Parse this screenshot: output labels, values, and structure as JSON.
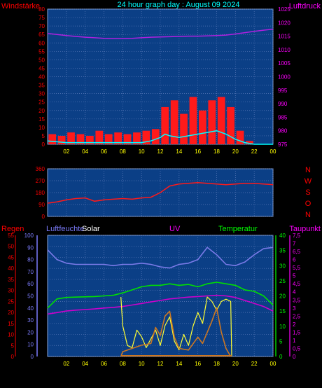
{
  "header": {
    "title": "24 hour graph day : August 09 2024",
    "left_label": "Windstärke",
    "right_label": "Luftdruck"
  },
  "colors": {
    "background": "#000000",
    "plot_bg": "#0b3f86",
    "grid": "#5878b8",
    "title": "#00ffff",
    "red_text": "#ff0000",
    "magenta_text": "#ff00ff",
    "blue_text": "#7d7dff",
    "yellow_text": "#ffff00",
    "green_text": "#00ff00",
    "white_text": "#ffffff",
    "x_tick_text": "#ffff00",
    "wind_red": "#ff1a1a",
    "gust_cyan": "#00ffff",
    "gust_white": "#ffffff",
    "pressure_magenta": "#b020e0",
    "direction_red": "#ff1a1a",
    "humidity_blue": "#7a7ae8",
    "temperature_green": "#00e000",
    "dewpoint_magenta": "#cc00cc",
    "solar_yellow": "#ffff33",
    "uv_orange": "#cc7722",
    "rain_white": "#ffffff"
  },
  "chart_data": [
    {
      "type": "line",
      "title": "24 hour graph day : August 09 2024",
      "x_ticks": [
        "02",
        "04",
        "06",
        "08",
        "10",
        "12",
        "14",
        "16",
        "18",
        "20",
        "22",
        "00"
      ],
      "x_range_hours": [
        0,
        24
      ],
      "left_axis": {
        "label": "Windstärke",
        "ticks": [
          "0",
          "5",
          "10",
          "15",
          "20",
          "25",
          "30",
          "35",
          "40",
          "45",
          "50",
          "55",
          "60",
          "65",
          "70",
          "75",
          "80"
        ],
        "ylim": [
          0,
          80
        ]
      },
      "right_axis": {
        "label": "Luftdruck",
        "ticks": [
          "975",
          "980",
          "985",
          "990",
          "995",
          "1000",
          "1005",
          "1010",
          "1015",
          "1020",
          "1025"
        ],
        "ylim": [
          975,
          1025
        ]
      },
      "series": [
        {
          "name": "",
          "axis": "right",
          "style": "line",
          "color_key": "pressure_magenta",
          "x": [
            0,
            1,
            2,
            3,
            4,
            5,
            6,
            7,
            8,
            9,
            10,
            11,
            12,
            13,
            14,
            15,
            16,
            17,
            18,
            19,
            20,
            21,
            22,
            23,
            24
          ],
          "y": [
            1016,
            1015.6,
            1015.2,
            1014.9,
            1014.6,
            1014.4,
            1014.2,
            1014.1,
            1014.1,
            1014.2,
            1014.4,
            1014.6,
            1014.7,
            1014.8,
            1014.9,
            1015,
            1015,
            1015.1,
            1015.2,
            1015.4,
            1015.8,
            1016.3,
            1016.8,
            1017.2,
            1017.6
          ]
        },
        {
          "name": "",
          "axis": "left",
          "style": "bars",
          "color_key": "wind_red",
          "x": [
            0.5,
            1.5,
            2.5,
            3.5,
            4.5,
            5.5,
            6.5,
            7.5,
            8.5,
            9.5,
            10.5,
            11.5,
            12.5,
            13.5,
            14.5,
            15.5,
            16.5,
            17.5,
            18.5,
            19.5,
            20.5,
            21.5,
            22.5,
            23.5
          ],
          "y": [
            6,
            5,
            7,
            6,
            5,
            8,
            6,
            7,
            6,
            7,
            8,
            9,
            22,
            26,
            18,
            28,
            20,
            26,
            28,
            22,
            8,
            2,
            0,
            0
          ]
        },
        {
          "name": "",
          "axis": "left",
          "style": "line",
          "color_key": "gust_cyan",
          "x": [
            0,
            2,
            4,
            6,
            8,
            10,
            11,
            12,
            12.5,
            13,
            14,
            15,
            16,
            17,
            18,
            19,
            20,
            21,
            22,
            24
          ],
          "y": [
            2,
            1,
            1,
            1,
            1,
            1,
            2,
            4,
            6,
            5,
            4,
            5,
            6,
            7,
            8,
            6,
            3,
            1,
            0,
            0
          ]
        }
      ]
    },
    {
      "type": "line",
      "x_range_hours": [
        0,
        24
      ],
      "left_axis": {
        "ticks": [
          "0",
          "90",
          "180",
          "270",
          "360"
        ],
        "ylim": [
          0,
          360
        ]
      },
      "right_labels": [
        "N",
        "W",
        "S",
        "O",
        "N"
      ],
      "series": [
        {
          "name": "",
          "color_key": "direction_red",
          "x": [
            0,
            1,
            2,
            3,
            4,
            5,
            6,
            7,
            8,
            9,
            10,
            11,
            12,
            13,
            14,
            15,
            16,
            17,
            18,
            19,
            20,
            21,
            22,
            23,
            24
          ],
          "y": [
            100,
            110,
            125,
            135,
            140,
            115,
            125,
            130,
            135,
            130,
            140,
            145,
            180,
            230,
            245,
            250,
            255,
            250,
            245,
            240,
            245,
            250,
            250,
            245,
            240
          ]
        }
      ]
    },
    {
      "type": "line",
      "x_ticks": [
        "02",
        "04",
        "06",
        "08",
        "10",
        "12",
        "14",
        "16",
        "18",
        "20",
        "22",
        "00"
      ],
      "x_range_hours": [
        0,
        24
      ],
      "labels": {
        "regen": "Regen",
        "luftfeuchte": "Luftfeuchte",
        "solar": "Solar",
        "uv": "UV",
        "temperatur": "Temperatur",
        "taupunkt": "Taupunkt"
      },
      "axes": {
        "regen_ticks": [
          "0",
          "5",
          "10",
          "15",
          "20",
          "25",
          "30",
          "35",
          "40",
          "45",
          "50",
          "55"
        ],
        "humidity_ticks": [
          "0",
          "10",
          "20",
          "30",
          "40",
          "50",
          "60",
          "70",
          "80",
          "90",
          "100"
        ],
        "temperature_ticks": [
          "0",
          "5",
          "10",
          "15",
          "20",
          "25",
          "30",
          "35",
          "40"
        ],
        "uv_ticks": [
          "0",
          "0,5",
          "1",
          "1,5",
          "2",
          "2,5",
          "3",
          "3,5",
          "4",
          "4,5",
          "5",
          "5,5",
          "6",
          "6,5",
          "7",
          "7,5"
        ]
      },
      "series": [
        {
          "name": "Luftfeuchte",
          "axis": "humidity",
          "ylim": [
            0,
            100
          ],
          "color_key": "humidity_blue",
          "x": [
            0,
            1,
            2,
            3,
            4,
            5,
            6,
            7,
            8,
            9,
            10,
            11,
            12,
            13,
            14,
            15,
            16,
            17,
            18,
            19,
            20,
            21,
            22,
            23,
            24
          ],
          "y": [
            88,
            80,
            77,
            76,
            76,
            76,
            76,
            75,
            76,
            76,
            77,
            76,
            74,
            73,
            76,
            77,
            80,
            90,
            84,
            76,
            75,
            78,
            84,
            89,
            90
          ]
        },
        {
          "name": "Temperatur",
          "axis": "temperature",
          "ylim": [
            0,
            40
          ],
          "color_key": "temperature_green",
          "x": [
            0,
            1,
            2,
            3,
            4,
            5,
            6,
            7,
            8,
            9,
            10,
            11,
            12,
            13,
            14,
            15,
            16,
            17,
            18,
            19,
            20,
            21,
            22,
            23,
            24
          ],
          "y": [
            16,
            19,
            19.5,
            19.6,
            19.7,
            19.8,
            20,
            20.2,
            21,
            22,
            23,
            23.5,
            23.5,
            24,
            23.5,
            23.8,
            23,
            24,
            24.5,
            24,
            23.5,
            22,
            21.5,
            20,
            17
          ]
        },
        {
          "name": "Taupunkt",
          "axis": "temperature",
          "ylim": [
            0,
            40
          ],
          "color_key": "dewpoint_magenta",
          "x": [
            0,
            1,
            2,
            3,
            4,
            5,
            6,
            7,
            8,
            9,
            10,
            11,
            12,
            13,
            14,
            15,
            16,
            17,
            18,
            19,
            20,
            21,
            22,
            23,
            24
          ],
          "y": [
            14,
            14.5,
            15,
            15.3,
            15.5,
            15.7,
            16,
            16.2,
            16.5,
            17,
            17.5,
            18,
            18.5,
            19,
            19.3,
            19.6,
            19.8,
            20,
            20.2,
            20,
            19.5,
            18.5,
            17.5,
            16.5,
            15
          ]
        },
        {
          "name": "Solar",
          "axis": "regen",
          "ylim": [
            0,
            55
          ],
          "color_key": "solar_yellow",
          "x": [
            7.8,
            8,
            8.5,
            9,
            9.5,
            10,
            10.5,
            11,
            11.5,
            12,
            12.5,
            13,
            13.5,
            14,
            14.5,
            15,
            15.5,
            16,
            16.5,
            17,
            17.5,
            18,
            18.5,
            19,
            19.5,
            19.6
          ],
          "y": [
            27,
            14,
            5,
            4,
            12,
            9,
            4,
            8,
            12,
            5,
            14,
            18,
            7,
            3,
            10,
            5,
            14,
            20,
            15,
            27,
            25,
            21,
            25,
            26,
            25,
            0
          ]
        },
        {
          "name": "UV",
          "axis": "uv",
          "ylim": [
            0,
            7.5
          ],
          "color_key": "uv_orange",
          "x": [
            7.8,
            8,
            9,
            10,
            11,
            11.5,
            12,
            12.5,
            13,
            13.5,
            14,
            15,
            16,
            16.5,
            17,
            17.5,
            18,
            18.5,
            19,
            19.5
          ],
          "y": [
            0,
            0.3,
            0.5,
            0.7,
            0.8,
            1.8,
            1.3,
            2.5,
            2.8,
            1.2,
            0.5,
            0.4,
            1.2,
            0.8,
            1.5,
            2.2,
            3.0,
            1.5,
            0.5,
            0
          ]
        }
      ]
    }
  ]
}
